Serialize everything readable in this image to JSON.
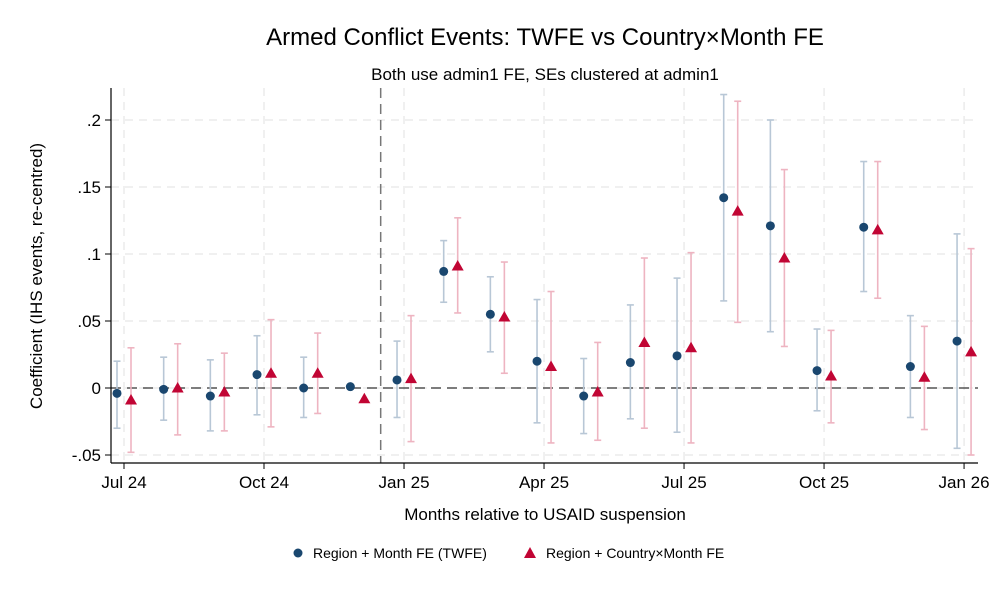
{
  "chart_data": {
    "type": "scatter",
    "title": "Armed Conflict Events: TWFE vs Country×Month FE",
    "subtitle": "Both use admin1 FE, SEs clustered at admin1",
    "xlabel": "Months relative to USAID suspension",
    "ylabel": "Coefficient (IHS events, re-centred)",
    "ylim": [
      -0.055,
      0.225
    ],
    "yticks": [
      {
        "v": 0.2,
        "label": ".2"
      },
      {
        "v": 0.15,
        "label": ".15"
      },
      {
        "v": 0.1,
        "label": ".1"
      },
      {
        "v": 0.05,
        "label": ".05"
      },
      {
        "v": 0,
        "label": "0"
      },
      {
        "v": -0.05,
        "label": "-.05"
      }
    ],
    "months": [
      "Jul 24",
      "Aug 24",
      "Sep 24",
      "Oct 24",
      "Nov 24",
      "Dec 24",
      "Jan 25",
      "Feb 25",
      "Mar 25",
      "Apr 25",
      "May 25",
      "Jun 25",
      "Jul 25",
      "Aug 25",
      "Sep 25",
      "Oct 25",
      "Nov 25",
      "Dec 25",
      "Jan 26"
    ],
    "xticks": [
      "Jul 24",
      "Oct 24",
      "Jan 25",
      "Apr 25",
      "Jul 25",
      "Oct 25",
      "Jan 26"
    ],
    "event_line_between": [
      "Dec 24",
      "Jan 25"
    ],
    "grid": true,
    "legend_position": "bottom",
    "series": [
      {
        "name": "Region + Month FE (TWFE)",
        "marker": "circle",
        "color": "#1a476f",
        "ci_color": "#b8c7d6",
        "values": [
          -0.004,
          -0.001,
          -0.006,
          0.01,
          0.0,
          0.001,
          0.006,
          0.087,
          0.055,
          0.02,
          -0.006,
          0.019,
          0.024,
          0.142,
          0.121,
          0.013,
          0.12,
          0.016,
          0.035
        ],
        "ci_low": [
          -0.03,
          -0.024,
          -0.032,
          -0.02,
          -0.022,
          null,
          -0.022,
          0.064,
          0.027,
          -0.026,
          -0.034,
          -0.023,
          -0.033,
          0.065,
          0.042,
          -0.017,
          0.072,
          -0.022,
          -0.045
        ],
        "ci_high": [
          0.02,
          0.023,
          0.021,
          0.039,
          0.023,
          null,
          0.035,
          0.11,
          0.083,
          0.066,
          0.022,
          0.062,
          0.082,
          0.219,
          0.2,
          0.044,
          0.169,
          0.054,
          0.115
        ]
      },
      {
        "name": "Region + Country×Month FE",
        "marker": "triangle",
        "color": "#c10534",
        "ci_color": "#eeb4c1",
        "values": [
          -0.009,
          0.0,
          -0.003,
          0.011,
          0.011,
          -0.008,
          0.007,
          0.091,
          0.053,
          0.016,
          -0.003,
          0.034,
          0.03,
          0.132,
          0.097,
          0.009,
          0.118,
          0.008,
          0.027
        ],
        "ci_low": [
          -0.048,
          -0.035,
          -0.032,
          -0.029,
          -0.019,
          null,
          -0.04,
          0.056,
          0.011,
          -0.041,
          -0.039,
          -0.03,
          -0.041,
          0.049,
          0.031,
          -0.026,
          0.067,
          -0.031,
          -0.05
        ],
        "ci_high": [
          0.03,
          0.033,
          0.026,
          0.051,
          0.041,
          null,
          0.054,
          0.127,
          0.094,
          0.072,
          0.034,
          0.097,
          0.101,
          0.214,
          0.163,
          0.043,
          0.169,
          0.046,
          0.104
        ]
      }
    ]
  }
}
